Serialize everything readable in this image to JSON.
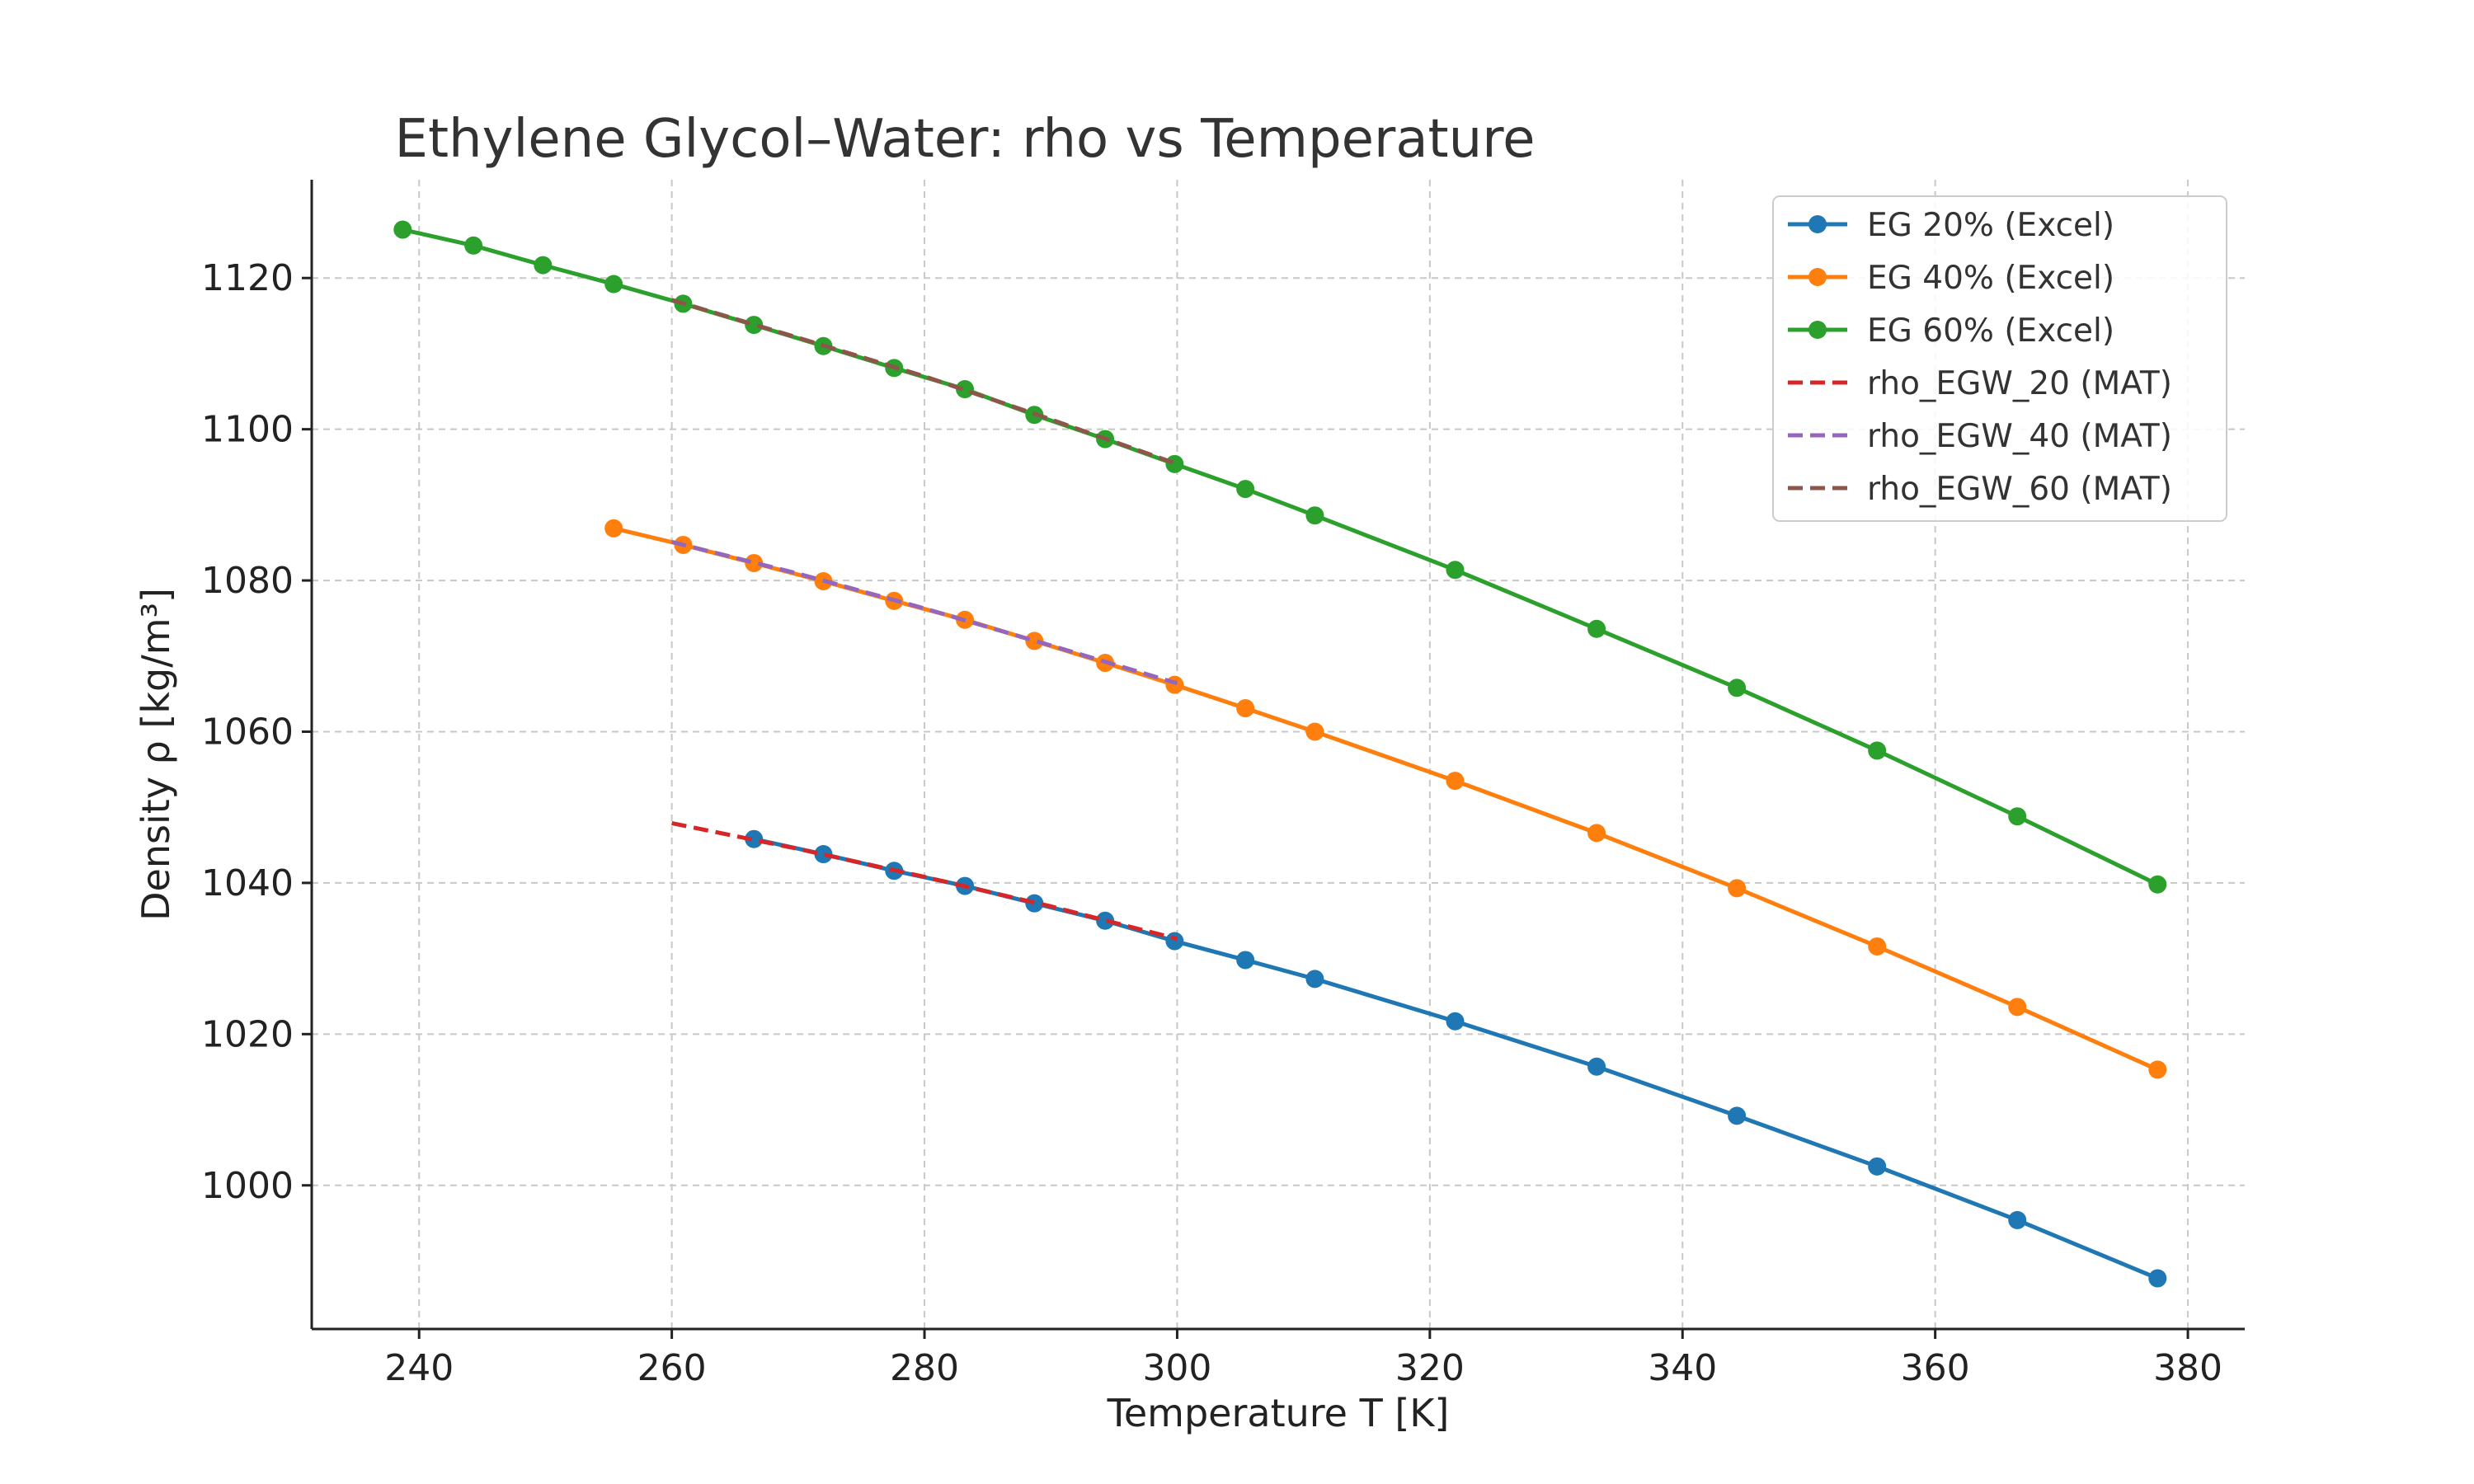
{
  "chart_data": {
    "type": "line",
    "title": "Ethylene Glycol–Water: rho vs Temperature",
    "xlabel": "Temperature T [K]",
    "ylabel": "Density ρ [kg/m³]",
    "xlim": [
      231.5,
      384.5
    ],
    "ylim": [
      981,
      1133
    ],
    "xticks": [
      240,
      260,
      280,
      300,
      320,
      340,
      360,
      380
    ],
    "yticks": [
      1000,
      1020,
      1040,
      1060,
      1080,
      1100,
      1120
    ],
    "grid": true,
    "legend_position": "top-right",
    "series": [
      {
        "name": "EG 20% (Excel)",
        "color": "#1f77b4",
        "style": "solid-marker",
        "x": [
          266.5,
          272.0,
          277.6,
          283.2,
          288.7,
          294.3,
          299.8,
          305.4,
          310.9,
          322.0,
          333.2,
          344.3,
          355.4,
          366.5,
          377.6
        ],
        "y": [
          1045.8,
          1043.8,
          1041.6,
          1039.6,
          1037.3,
          1035.0,
          1032.3,
          1029.8,
          1027.3,
          1021.7,
          1015.7,
          1009.2,
          1002.5,
          995.4,
          987.7
        ]
      },
      {
        "name": "EG 40% (Excel)",
        "color": "#ff7f0e",
        "style": "solid-marker",
        "x": [
          255.4,
          260.9,
          266.5,
          272.0,
          277.6,
          283.2,
          288.7,
          294.3,
          299.8,
          305.4,
          310.9,
          322.0,
          333.2,
          344.3,
          355.4,
          366.5,
          377.6
        ],
        "y": [
          1086.9,
          1084.7,
          1082.3,
          1079.9,
          1077.3,
          1074.8,
          1072.0,
          1069.1,
          1066.2,
          1063.1,
          1060.0,
          1053.5,
          1046.6,
          1039.3,
          1031.6,
          1023.6,
          1015.3
        ]
      },
      {
        "name": "EG 60% (Excel)",
        "color": "#2ca02c",
        "style": "solid-marker",
        "x": [
          238.7,
          244.3,
          249.8,
          255.4,
          260.9,
          266.5,
          272.0,
          277.6,
          283.2,
          288.7,
          294.3,
          299.8,
          305.4,
          310.9,
          322.0,
          333.2,
          344.3,
          355.4,
          366.5,
          377.6
        ],
        "y": [
          1126.4,
          1124.3,
          1121.7,
          1119.2,
          1116.6,
          1113.8,
          1111.0,
          1108.1,
          1105.3,
          1101.9,
          1098.7,
          1095.4,
          1092.1,
          1088.6,
          1081.4,
          1073.6,
          1065.8,
          1057.5,
          1048.8,
          1039.8
        ]
      },
      {
        "name": "rho_EGW_20 (MAT)",
        "color": "#d62728",
        "style": "dashed",
        "x": [
          260,
          270,
          280,
          290,
          300
        ],
        "y": [
          1047.9,
          1044.5,
          1040.8,
          1036.9,
          1032.6
        ]
      },
      {
        "name": "rho_EGW_40 (MAT)",
        "color": "#9467bd",
        "style": "dashed",
        "x": [
          260,
          270,
          280,
          290,
          300
        ],
        "y": [
          1085.1,
          1080.9,
          1076.3,
          1071.4,
          1066.4
        ]
      },
      {
        "name": "rho_EGW_60 (MAT)",
        "color": "#8c564b",
        "style": "dashed",
        "x": [
          260,
          270,
          280,
          290,
          300
        ],
        "y": [
          1117.1,
          1112.1,
          1107.0,
          1101.3,
          1095.4
        ]
      }
    ]
  }
}
